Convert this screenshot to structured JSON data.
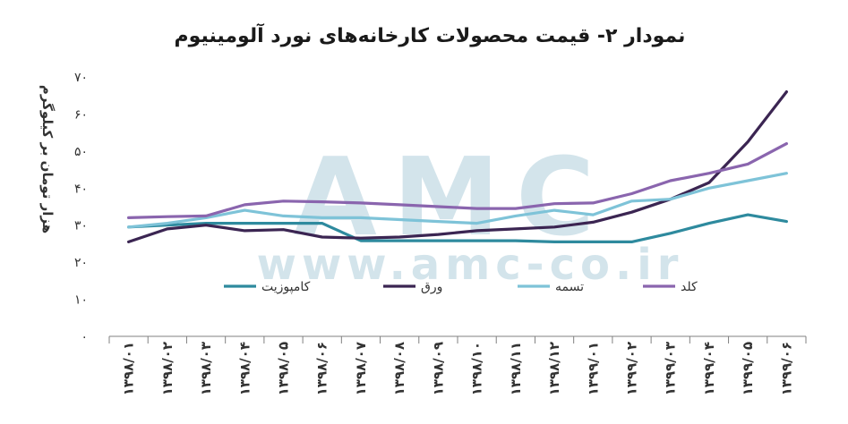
{
  "watermark": {
    "logo": "AMC",
    "url": "www.amc-co.ir"
  },
  "chart_data": {
    "type": "line",
    "title": "نمودار ۲- قیمت محصولات کارخانه‌های نورد آلومینیوم",
    "ylabel": "هزار تومان بر کیلوگرم",
    "ylim": [
      0,
      70
    ],
    "yticks": [
      "۰",
      "۱۰",
      "۲۰",
      "۳۰",
      "۴۰",
      "۵۰",
      "۶۰",
      "۷۰"
    ],
    "grid": false,
    "legend_position": "bottom-center",
    "categories": [
      "۱۳۹۸/۰۱",
      "۱۳۹۸/۰۲",
      "۱۳۹۸/۰۳",
      "۱۳۹۸/۰۴",
      "۱۳۹۸/۰۵",
      "۱۳۹۸/۰۶",
      "۱۳۹۸/۰۷",
      "۱۳۹۸/۰۸",
      "۱۳۹۸/۰۹",
      "۱۳۹۸/۱۰",
      "۱۳۹۸/۱۱",
      "۱۳۹۸/۱۲",
      "۱۳۹۹/۰۱",
      "۱۳۹۹/۰۲",
      "۱۳۹۹/۰۳",
      "۱۳۹۹/۰۴",
      "۱۳۹۹/۰۵",
      "۱۳۹۹/۰۶"
    ],
    "series": [
      {
        "name": "کامپوزیت",
        "color": "#2e8a9e",
        "values": [
          29.5,
          30.0,
          30.5,
          30.5,
          30.5,
          30.5,
          25.8,
          25.8,
          25.8,
          25.8,
          25.8,
          25.5,
          25.5,
          25.5,
          27.8,
          30.5,
          32.8,
          31.0
        ]
      },
      {
        "name": "ورق",
        "color": "#3b2552",
        "values": [
          25.5,
          29.0,
          30.0,
          28.5,
          28.8,
          26.8,
          26.5,
          26.8,
          27.5,
          28.5,
          29.0,
          29.5,
          30.8,
          33.5,
          37.0,
          41.5,
          52.5,
          66.0
        ]
      },
      {
        "name": "تسمه",
        "color": "#7ec3d8",
        "values": [
          29.5,
          30.5,
          32.0,
          34.0,
          32.5,
          32.0,
          32.0,
          31.5,
          31.0,
          30.5,
          32.5,
          34.0,
          32.8,
          36.5,
          37.0,
          40.0,
          42.0,
          44.0
        ]
      },
      {
        "name": "کلد",
        "color": "#8a65ae",
        "values": [
          32.0,
          32.3,
          32.5,
          35.5,
          36.5,
          36.3,
          36.0,
          35.5,
          35.0,
          34.5,
          34.5,
          35.8,
          36.0,
          38.5,
          42.0,
          44.0,
          46.5,
          52.0
        ]
      }
    ]
  }
}
